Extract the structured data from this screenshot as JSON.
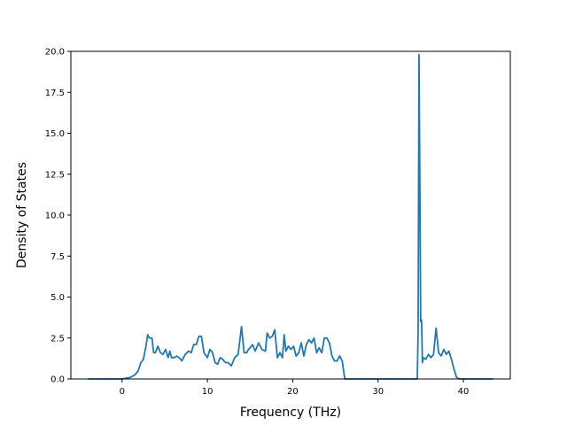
{
  "chart_data": {
    "type": "line",
    "title": "",
    "xlabel": "Frequency (THz)",
    "ylabel": "Density of States",
    "xlim": [
      -6.0,
      45.5
    ],
    "ylim": [
      0.0,
      20.0
    ],
    "xticks": [
      0,
      10,
      20,
      30,
      40
    ],
    "yticks": [
      0.0,
      2.5,
      5.0,
      7.5,
      10.0,
      12.5,
      15.0,
      17.5,
      20.0
    ],
    "xtick_labels": [
      "0",
      "10",
      "20",
      "30",
      "40"
    ],
    "ytick_labels": [
      "0.0",
      "2.5",
      "5.0",
      "7.5",
      "10.0",
      "12.5",
      "15.0",
      "17.5",
      "20.0"
    ],
    "grid": false,
    "legend": "none",
    "color": "#1f77b4",
    "series": [
      {
        "x": [
          -4.0,
          0.0,
          0.5,
          1.0,
          1.5,
          1.9,
          2.2,
          2.5,
          2.8,
          3.0,
          3.2,
          3.5,
          3.7,
          3.9,
          4.2,
          4.5,
          4.8,
          5.1,
          5.4,
          5.6,
          5.8,
          6.1,
          6.4,
          6.7,
          7.0,
          7.4,
          7.8,
          8.1,
          8.4,
          8.7,
          9.0,
          9.3,
          9.6,
          10.0,
          10.3,
          10.6,
          10.9,
          11.2,
          11.5,
          11.8,
          12.1,
          12.4,
          12.8,
          13.2,
          13.6,
          14.0,
          14.3,
          14.6,
          14.8,
          15.0,
          15.3,
          15.6,
          16.0,
          16.4,
          16.8,
          17.0,
          17.3,
          17.6,
          17.9,
          18.2,
          18.5,
          18.8,
          19.0,
          19.2,
          19.5,
          19.8,
          20.1,
          20.4,
          20.7,
          21.0,
          21.3,
          21.6,
          21.9,
          22.2,
          22.5,
          22.8,
          23.1,
          23.4,
          23.7,
          24.0,
          24.3,
          24.6,
          24.9,
          25.2,
          25.5,
          25.8,
          26.1,
          26.4,
          26.7,
          30.0,
          34.6,
          34.7,
          34.8,
          34.9,
          35.0,
          35.1,
          35.2,
          35.3,
          35.6,
          35.9,
          36.2,
          36.5,
          36.8,
          37.1,
          37.4,
          37.7,
          38.0,
          38.3,
          38.6,
          38.9,
          39.2,
          39.5,
          39.8,
          40.5,
          43.5
        ],
        "y": [
          0.0,
          0.0,
          0.05,
          0.1,
          0.25,
          0.5,
          1.0,
          1.2,
          2.0,
          2.7,
          2.5,
          2.5,
          1.6,
          1.6,
          2.0,
          1.6,
          1.5,
          1.8,
          1.3,
          1.7,
          1.3,
          1.3,
          1.4,
          1.3,
          1.1,
          1.5,
          1.7,
          1.6,
          2.1,
          2.1,
          2.6,
          2.6,
          1.6,
          1.3,
          1.8,
          1.6,
          1.0,
          0.9,
          1.3,
          1.2,
          1.0,
          1.0,
          0.8,
          1.3,
          1.5,
          3.2,
          1.6,
          1.6,
          1.8,
          1.9,
          2.1,
          1.7,
          2.2,
          1.8,
          1.7,
          2.8,
          2.5,
          2.6,
          3.0,
          1.3,
          1.6,
          1.3,
          2.7,
          1.7,
          2.0,
          1.8,
          2.0,
          1.4,
          1.6,
          2.2,
          1.4,
          2.1,
          2.4,
          2.2,
          2.5,
          1.6,
          1.9,
          1.6,
          2.5,
          2.5,
          2.2,
          1.4,
          1.1,
          1.1,
          1.4,
          1.1,
          0.0,
          0.0,
          0.0,
          0.0,
          0.0,
          3.0,
          19.8,
          12.0,
          3.5,
          3.6,
          1.0,
          1.3,
          1.2,
          1.5,
          1.3,
          1.5,
          3.1,
          1.6,
          1.4,
          1.8,
          1.5,
          1.7,
          1.2,
          0.6,
          0.1,
          0.0,
          0.0,
          0.0,
          0.0
        ]
      }
    ]
  }
}
